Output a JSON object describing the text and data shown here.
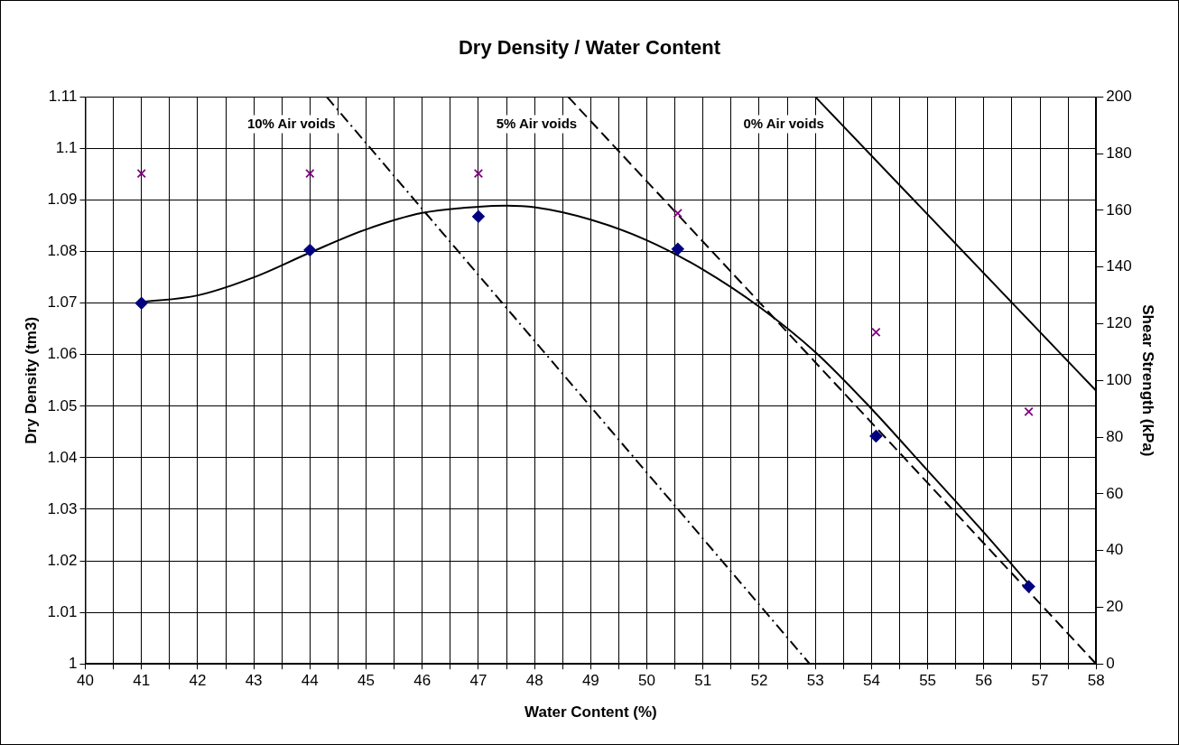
{
  "chart_data": {
    "type": "scatter",
    "title": "Dry Density / Water Content",
    "xlabel": "Water Content (%)",
    "ylabel": "Dry Density (tm3)",
    "y2label": "Shear Strength (kPa)",
    "series": [
      {
        "type": "line",
        "color": "#000000",
        "line_style": "solid",
        "marker": "none",
        "x": [
          41,
          42,
          43,
          44,
          45,
          46,
          47,
          47.5,
          48,
          49,
          50,
          51,
          52,
          53,
          54,
          55,
          56,
          56.8
        ],
        "values": [
          1.0702,
          1.0715,
          1.075,
          1.0798,
          1.0843,
          1.0875,
          1.0887,
          1.0889,
          1.0886,
          1.0862,
          1.0822,
          1.0765,
          1.0693,
          1.0605,
          1.0495,
          1.0375,
          1.0255,
          1.0155
        ]
      },
      {
        "type": "line",
        "name": "10% Air voids",
        "color": "#000000",
        "line_style": "dashdot",
        "marker": "none",
        "x": [
          44.3,
          52.9
        ],
        "values": [
          1.11,
          1.0
        ]
      },
      {
        "type": "line",
        "name": "5% Air voids",
        "color": "#000000",
        "line_style": "dashed",
        "marker": "none",
        "x": [
          48.6,
          58
        ],
        "values": [
          1.11,
          1.0
        ]
      },
      {
        "type": "line",
        "name": "0% Air voids",
        "color": "#000000",
        "line_style": "solid",
        "marker": "none",
        "x": [
          53,
          58
        ],
        "values": [
          1.11,
          1.053
        ]
      },
      {
        "type": "scatter",
        "color": "#000080",
        "marker": "diamond",
        "x": [
          41,
          44,
          47,
          50.55,
          54.08,
          56.8
        ],
        "values": [
          1.07,
          1.0803,
          1.0868,
          1.0805,
          1.0442,
          1.015
        ]
      },
      {
        "type": "scatter",
        "color": "#800080",
        "marker": "cross",
        "axis": "y2",
        "x": [
          41,
          44,
          47,
          50.55,
          54.08,
          56.8
        ],
        "values": [
          173,
          173,
          173,
          159,
          117,
          89
        ]
      }
    ],
    "xlim": [
      40,
      58
    ],
    "xticks": [
      40,
      {
        "value": 40.5,
        "label": null
      },
      41,
      {
        "value": 41.5,
        "label": null
      },
      42,
      {
        "value": 42.5,
        "label": null
      },
      43,
      {
        "value": 43.5,
        "label": null
      },
      44,
      {
        "value": 44.5,
        "label": null
      },
      45,
      {
        "value": 45.5,
        "label": null
      },
      46,
      {
        "value": 46.5,
        "label": null
      },
      47,
      {
        "value": 47.5,
        "label": null
      },
      48,
      {
        "value": 48.5,
        "label": null
      },
      49,
      {
        "value": 49.5,
        "label": null
      },
      50,
      {
        "value": 50.5,
        "label": null
      },
      51,
      {
        "value": 51.5,
        "label": null
      },
      52,
      {
        "value": 52.5,
        "label": null
      },
      53,
      {
        "value": 53.5,
        "label": null
      },
      54,
      {
        "value": 54.5,
        "label": null
      },
      55,
      {
        "value": 55.5,
        "label": null
      },
      56,
      {
        "value": 56.5,
        "label": null
      },
      57,
      {
        "value": 57.5,
        "label": null
      },
      58
    ],
    "ylim": [
      1,
      1.11
    ],
    "yticks": [
      1,
      1.01,
      1.02,
      1.03,
      1.04,
      1.05,
      1.06,
      1.07,
      1.08,
      1.09,
      1.1,
      1.11
    ],
    "y2lim": [
      0,
      200
    ],
    "y2ticks": [
      0,
      20,
      40,
      60,
      80,
      100,
      120,
      140,
      160,
      180,
      200
    ],
    "grid": true,
    "legend": false
  }
}
